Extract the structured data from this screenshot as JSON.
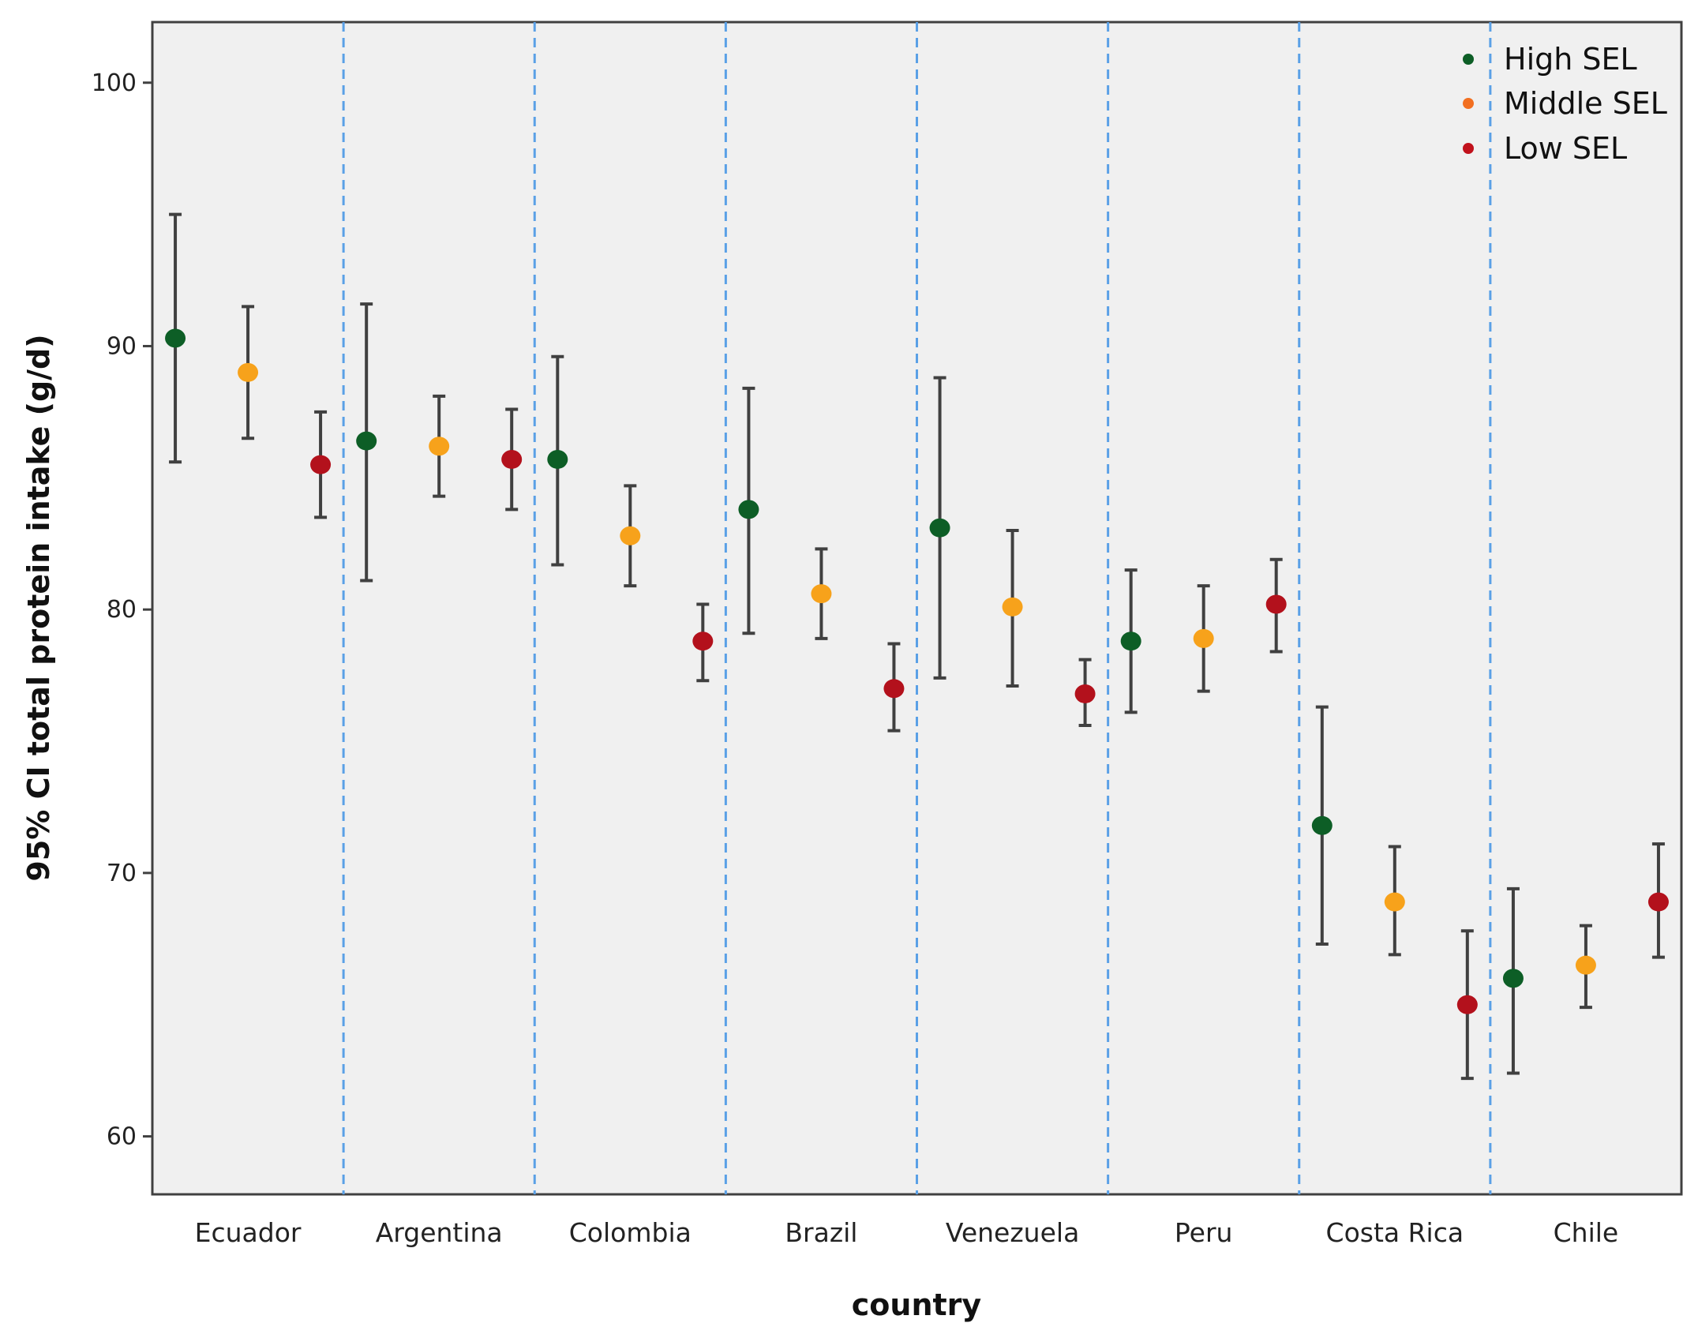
{
  "chart_data": {
    "type": "scatter",
    "subtype": "error-bar",
    "title": "",
    "xlabel": "country",
    "ylabel": "95% CI total protein intake (g/d)",
    "ylim": [
      57.8,
      102.3
    ],
    "yticks": [
      60,
      70,
      80,
      90,
      100
    ],
    "grid": false,
    "legend_position": "top-right",
    "categories": [
      "Ecuador",
      "Argentina",
      "Colombia",
      "Brazil",
      "Venezuela",
      "Peru",
      "Costa Rica",
      "Chile"
    ],
    "series": [
      {
        "name": "High SEL",
        "color": "#0d5e26",
        "mean": [
          90.3,
          86.4,
          85.7,
          83.8,
          83.1,
          78.8,
          71.8,
          66.0
        ],
        "lower": [
          85.6,
          81.1,
          81.7,
          79.1,
          77.4,
          76.1,
          67.3,
          62.4
        ],
        "upper": [
          95.0,
          91.6,
          89.6,
          88.4,
          88.8,
          81.5,
          76.3,
          69.4
        ]
      },
      {
        "name": "Middle SEL",
        "color": "#f7a21b",
        "mean": [
          89.0,
          86.2,
          82.8,
          80.6,
          80.1,
          78.9,
          68.9,
          66.5
        ],
        "lower": [
          86.5,
          84.3,
          80.9,
          78.9,
          77.1,
          76.9,
          66.9,
          64.9
        ],
        "upper": [
          91.5,
          88.1,
          84.7,
          82.3,
          83.0,
          80.9,
          71.0,
          68.0
        ]
      },
      {
        "name": "Low SEL",
        "color": "#b3111c",
        "mean": [
          85.5,
          85.7,
          78.8,
          77.0,
          76.8,
          80.2,
          65.0,
          68.9
        ],
        "lower": [
          83.5,
          83.8,
          77.3,
          75.4,
          75.6,
          78.4,
          62.2,
          66.8
        ],
        "upper": [
          87.5,
          87.6,
          80.2,
          78.7,
          78.1,
          81.9,
          67.8,
          71.1
        ]
      }
    ],
    "legend_marker_colors": [
      "#0d5e26",
      "#f26f21",
      "#c1121c"
    ],
    "plot_background": "#f0f0f0",
    "divider_color": "#5aa0e6"
  }
}
